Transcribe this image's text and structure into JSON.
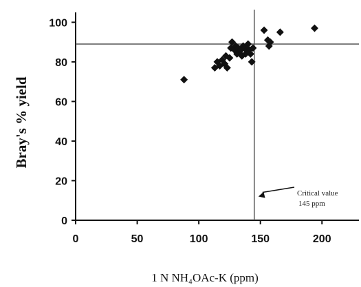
{
  "chart_data": {
    "type": "scatter",
    "title": "",
    "xlabel": "1 N NH₄OAc-K (ppm)",
    "ylabel": "Bray's % yield",
    "xlim": [
      0,
      230
    ],
    "ylim": [
      0,
      105
    ],
    "xticks": [
      0,
      50,
      100,
      150,
      200
    ],
    "yticks": [
      0,
      20,
      40,
      60,
      80,
      100
    ],
    "grid": false,
    "legend": "none",
    "marker": "diamond",
    "marker_color": "#111111",
    "reference_lines": {
      "critical_x": 145,
      "critical_y": 89
    },
    "annotation": {
      "line1": "Critical value",
      "line2": "145 ppm",
      "points_to": [
        145,
        12
      ]
    },
    "points": [
      {
        "x": 88,
        "y": 71
      },
      {
        "x": 113,
        "y": 77
      },
      {
        "x": 115,
        "y": 80
      },
      {
        "x": 117,
        "y": 78
      },
      {
        "x": 119,
        "y": 81
      },
      {
        "x": 121,
        "y": 79
      },
      {
        "x": 122,
        "y": 83
      },
      {
        "x": 123,
        "y": 77
      },
      {
        "x": 125,
        "y": 82
      },
      {
        "x": 126,
        "y": 87
      },
      {
        "x": 127,
        "y": 90
      },
      {
        "x": 129,
        "y": 86
      },
      {
        "x": 130,
        "y": 88
      },
      {
        "x": 131,
        "y": 84
      },
      {
        "x": 132,
        "y": 87
      },
      {
        "x": 133,
        "y": 85
      },
      {
        "x": 134,
        "y": 86
      },
      {
        "x": 135,
        "y": 83
      },
      {
        "x": 136,
        "y": 88
      },
      {
        "x": 137,
        "y": 87
      },
      {
        "x": 138,
        "y": 84
      },
      {
        "x": 139,
        "y": 86
      },
      {
        "x": 140,
        "y": 89
      },
      {
        "x": 141,
        "y": 86
      },
      {
        "x": 142,
        "y": 84
      },
      {
        "x": 143,
        "y": 80
      },
      {
        "x": 144,
        "y": 87
      },
      {
        "x": 153,
        "y": 96
      },
      {
        "x": 156,
        "y": 91
      },
      {
        "x": 157,
        "y": 88
      },
      {
        "x": 158,
        "y": 90
      },
      {
        "x": 166,
        "y": 95
      },
      {
        "x": 194,
        "y": 97
      }
    ]
  }
}
